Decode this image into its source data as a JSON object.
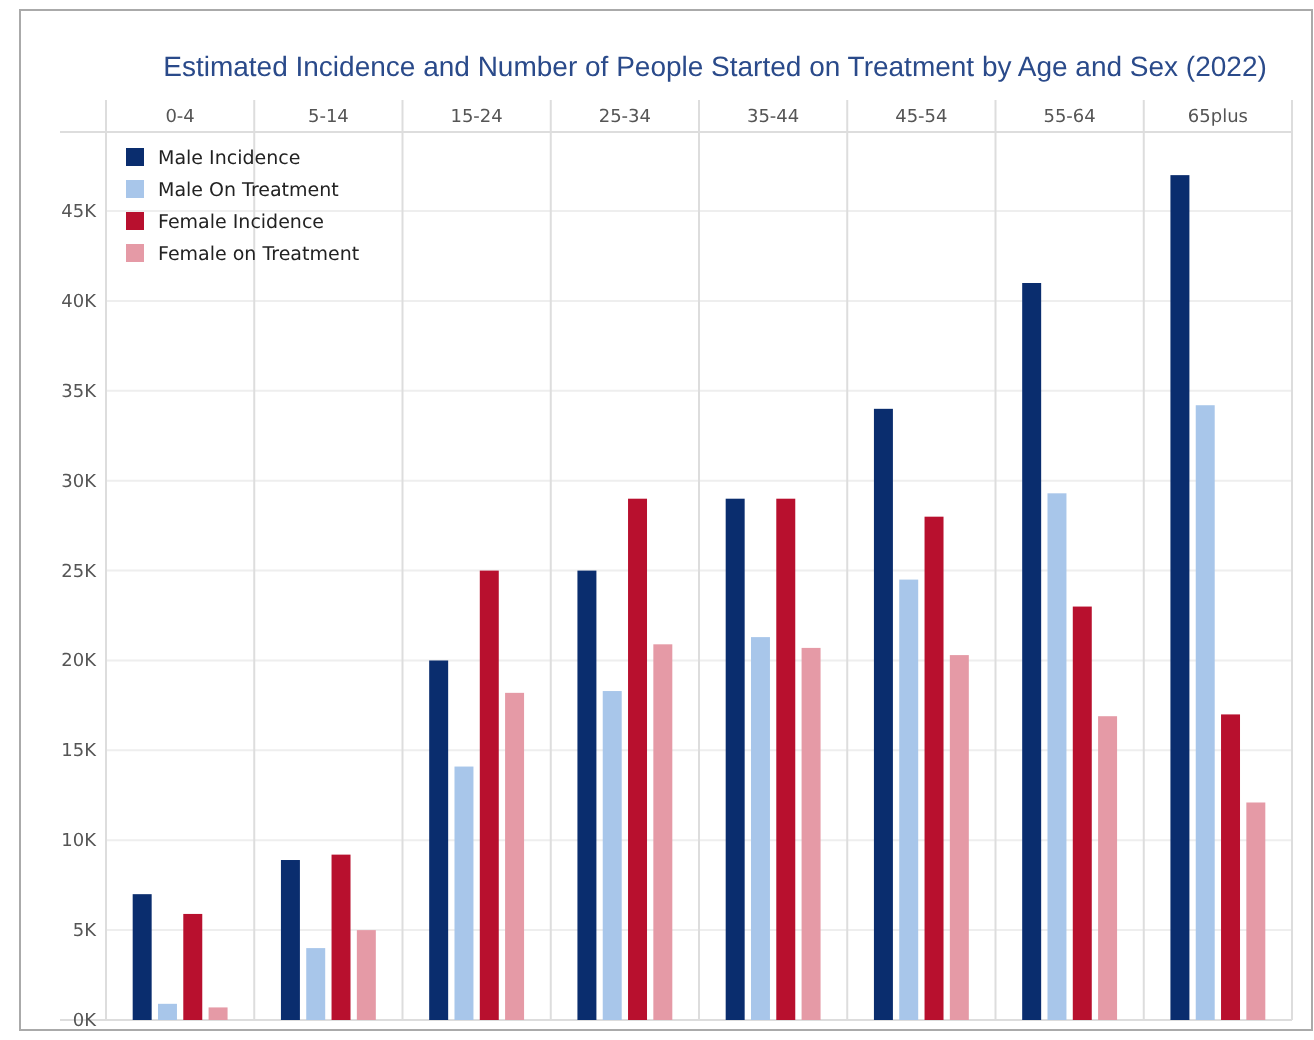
{
  "chart_data": {
    "type": "bar",
    "title": "Estimated Incidence and Number of People Started on Treatment by Age and Sex (2022)",
    "categories": [
      "0-4",
      "5-14",
      "15-24",
      "25-34",
      "35-44",
      "45-54",
      "55-64",
      "65plus"
    ],
    "series": [
      {
        "name": "Male Incidence",
        "color": "#0a2d6e",
        "values": [
          7000,
          8900,
          20000,
          25000,
          29000,
          34000,
          41000,
          47000
        ]
      },
      {
        "name": "Male On Treatment",
        "color": "#a8c6ea",
        "values": [
          900,
          4000,
          14100,
          18300,
          21300,
          24500,
          29300,
          34200
        ]
      },
      {
        "name": "Female Incidence",
        "color": "#b8102e",
        "values": [
          5900,
          9200,
          25000,
          29000,
          29000,
          28000,
          23000,
          17000
        ]
      },
      {
        "name": "Female on Treatment",
        "color": "#e59aa6",
        "values": [
          700,
          5000,
          18200,
          20900,
          20700,
          20300,
          16900,
          12100
        ]
      }
    ],
    "ylim": [
      0,
      49400
    ],
    "yticks": [
      {
        "value": 0,
        "label": "0K"
      },
      {
        "value": 5000,
        "label": "5K"
      },
      {
        "value": 10000,
        "label": "10K"
      },
      {
        "value": 15000,
        "label": "15K"
      },
      {
        "value": 20000,
        "label": "20K"
      },
      {
        "value": 25000,
        "label": "25K"
      },
      {
        "value": 30000,
        "label": "30K"
      },
      {
        "value": 35000,
        "label": "35K"
      },
      {
        "value": 40000,
        "label": "40K"
      },
      {
        "value": 45000,
        "label": "45K"
      }
    ],
    "grid": true,
    "legend": "top left"
  }
}
